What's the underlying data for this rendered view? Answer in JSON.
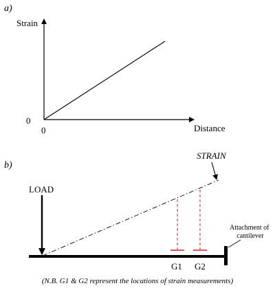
{
  "panel_a": {
    "label": "a)",
    "y_axis_label": "Strain",
    "x_axis_label": "Distance",
    "y_origin_label": "0",
    "x_origin_label": "0"
  },
  "panel_b": {
    "label": "b)",
    "strain_label": "STRAIN",
    "load_label": "LOAD",
    "attachment_line1": "Attachment of",
    "attachment_line2": "cantilever",
    "g1_label": "G1",
    "g2_label": "G2",
    "note": "(N.B. G1 & G2 represent the locations of strain measurements)"
  },
  "colors": {
    "ink": "#000000",
    "gauge_dashes": "#d02020"
  }
}
